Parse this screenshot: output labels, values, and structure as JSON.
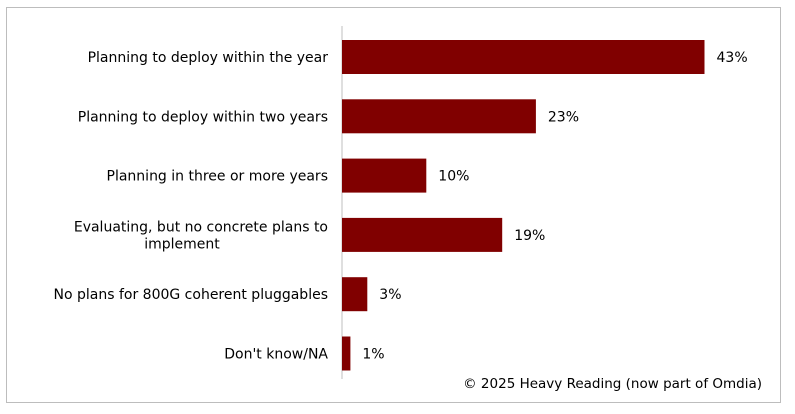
{
  "chart_data": {
    "type": "bar",
    "orientation": "horizontal",
    "categories": [
      "Planning to deploy within the year",
      "Planning to deploy within two years",
      "Planning in three or more years",
      "Evaluating, but no concrete plans to implement",
      "No plans for 800G coherent pluggables",
      "Don't know/NA"
    ],
    "category_lines": [
      [
        "Planning to deploy within the year"
      ],
      [
        "Planning to deploy within two years"
      ],
      [
        "Planning in three or more years"
      ],
      [
        "Evaluating, but no concrete plans to",
        "implement"
      ],
      [
        "No plans for 800G coherent pluggables"
      ],
      [
        "Don't know/NA"
      ]
    ],
    "values": [
      43,
      23,
      10,
      19,
      3,
      1
    ],
    "value_labels": [
      "43%",
      "23%",
      "10%",
      "19%",
      "3%",
      "1%"
    ],
    "unit": "%",
    "xlim": [
      0,
      50
    ],
    "grid": false,
    "legend": "none",
    "bar_color": "#800000",
    "axis_color": "#bfbfbf"
  },
  "footer": {
    "copyright": "© 2025 Heavy Reading (now part of Omdia)"
  }
}
